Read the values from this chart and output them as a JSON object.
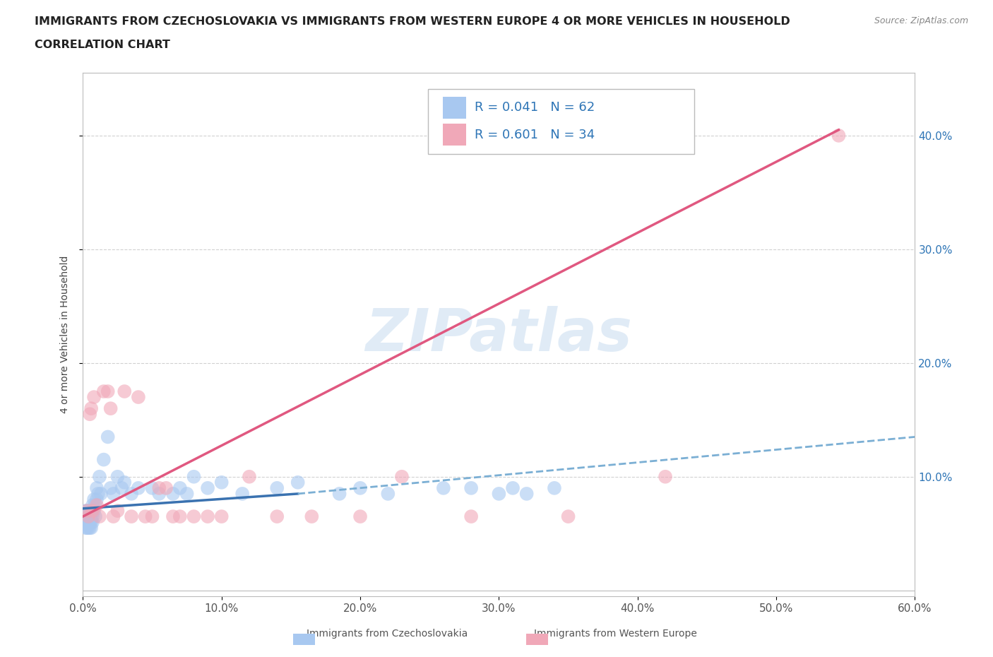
{
  "title_line1": "IMMIGRANTS FROM CZECHOSLOVAKIA VS IMMIGRANTS FROM WESTERN EUROPE 4 OR MORE VEHICLES IN HOUSEHOLD",
  "title_line2": "CORRELATION CHART",
  "source_text": "Source: ZipAtlas.com",
  "ylabel": "4 or more Vehicles in Household",
  "xlim": [
    0.0,
    0.6
  ],
  "ylim": [
    -0.005,
    0.455
  ],
  "xticks": [
    0.0,
    0.1,
    0.2,
    0.3,
    0.4,
    0.5,
    0.6
  ],
  "yticks": [
    0.1,
    0.2,
    0.3,
    0.4
  ],
  "ytick_labels": [
    "10.0%",
    "20.0%",
    "30.0%",
    "40.0%"
  ],
  "xtick_labels": [
    "0.0%",
    "10.0%",
    "20.0%",
    "30.0%",
    "40.0%",
    "50.0%",
    "60.0%"
  ],
  "watermark": "ZIPatlas",
  "color_blue": "#A8C8F0",
  "color_pink": "#F0A8B8",
  "trendline_blue_solid_color": "#3A72B0",
  "trendline_blue_dash_color": "#7BAFD4",
  "trendline_pink_color": "#E05880",
  "background_color": "#FFFFFF",
  "grid_color": "#CCCCCC",
  "legend_text_color": "#2E75B6",
  "blue_solid_trend_x": [
    0.0,
    0.155
  ],
  "blue_solid_trend_y": [
    0.072,
    0.085
  ],
  "blue_dash_trend_x": [
    0.155,
    0.6
  ],
  "blue_dash_trend_y": [
    0.085,
    0.135
  ],
  "pink_trend_x": [
    0.0,
    0.545
  ],
  "pink_trend_y": [
    0.065,
    0.405
  ],
  "blue_x": [
    0.002,
    0.002,
    0.002,
    0.002,
    0.003,
    0.003,
    0.003,
    0.003,
    0.004,
    0.004,
    0.004,
    0.004,
    0.004,
    0.005,
    0.005,
    0.005,
    0.005,
    0.006,
    0.006,
    0.006,
    0.006,
    0.007,
    0.007,
    0.007,
    0.008,
    0.008,
    0.009,
    0.009,
    0.01,
    0.01,
    0.011,
    0.012,
    0.013,
    0.015,
    0.018,
    0.02,
    0.022,
    0.025,
    0.028,
    0.03,
    0.035,
    0.04,
    0.05,
    0.055,
    0.065,
    0.07,
    0.075,
    0.08,
    0.09,
    0.1,
    0.115,
    0.14,
    0.155,
    0.185,
    0.2,
    0.22,
    0.26,
    0.28,
    0.3,
    0.31,
    0.32,
    0.34
  ],
  "blue_y": [
    0.06,
    0.065,
    0.055,
    0.07,
    0.06,
    0.065,
    0.055,
    0.07,
    0.065,
    0.06,
    0.055,
    0.07,
    0.065,
    0.065,
    0.06,
    0.07,
    0.055,
    0.065,
    0.07,
    0.06,
    0.055,
    0.075,
    0.065,
    0.06,
    0.08,
    0.07,
    0.075,
    0.065,
    0.09,
    0.08,
    0.085,
    0.1,
    0.085,
    0.115,
    0.135,
    0.09,
    0.085,
    0.1,
    0.09,
    0.095,
    0.085,
    0.09,
    0.09,
    0.085,
    0.085,
    0.09,
    0.085,
    0.1,
    0.09,
    0.095,
    0.085,
    0.09,
    0.095,
    0.085,
    0.09,
    0.085,
    0.09,
    0.09,
    0.085,
    0.09,
    0.085,
    0.09
  ],
  "pink_x": [
    0.003,
    0.004,
    0.005,
    0.006,
    0.007,
    0.008,
    0.01,
    0.012,
    0.015,
    0.018,
    0.02,
    0.022,
    0.025,
    0.03,
    0.035,
    0.04,
    0.045,
    0.05,
    0.055,
    0.06,
    0.065,
    0.07,
    0.08,
    0.09,
    0.1,
    0.12,
    0.14,
    0.165,
    0.2,
    0.23,
    0.28,
    0.35,
    0.42,
    0.545
  ],
  "pink_y": [
    0.07,
    0.065,
    0.155,
    0.16,
    0.07,
    0.17,
    0.075,
    0.065,
    0.175,
    0.175,
    0.16,
    0.065,
    0.07,
    0.175,
    0.065,
    0.17,
    0.065,
    0.065,
    0.09,
    0.09,
    0.065,
    0.065,
    0.065,
    0.065,
    0.065,
    0.1,
    0.065,
    0.065,
    0.065,
    0.1,
    0.065,
    0.065,
    0.1,
    0.4
  ]
}
